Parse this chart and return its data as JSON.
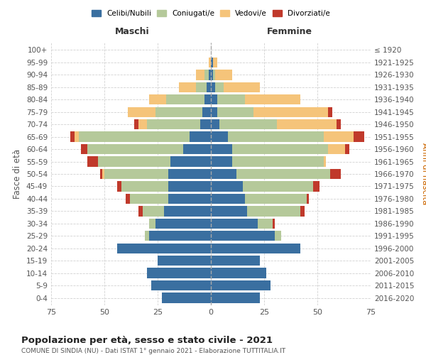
{
  "age_groups": [
    "0-4",
    "5-9",
    "10-14",
    "15-19",
    "20-24",
    "25-29",
    "30-34",
    "35-39",
    "40-44",
    "45-49",
    "50-54",
    "55-59",
    "60-64",
    "65-69",
    "70-74",
    "75-79",
    "80-84",
    "85-89",
    "90-94",
    "95-99",
    "100+"
  ],
  "birth_years": [
    "2016-2020",
    "2011-2015",
    "2006-2010",
    "2001-2005",
    "1996-2000",
    "1991-1995",
    "1986-1990",
    "1981-1985",
    "1976-1980",
    "1971-1975",
    "1966-1970",
    "1961-1965",
    "1956-1960",
    "1951-1955",
    "1946-1950",
    "1941-1945",
    "1936-1940",
    "1931-1935",
    "1926-1930",
    "1921-1925",
    "≤ 1920"
  ],
  "males": {
    "celibi": [
      23,
      28,
      30,
      25,
      44,
      29,
      26,
      22,
      20,
      20,
      20,
      19,
      13,
      10,
      5,
      4,
      3,
      2,
      1,
      0,
      0
    ],
    "coniugati": [
      0,
      0,
      0,
      0,
      0,
      2,
      3,
      10,
      18,
      22,
      30,
      34,
      45,
      52,
      25,
      22,
      18,
      5,
      2,
      0,
      0
    ],
    "vedovi": [
      0,
      0,
      0,
      0,
      0,
      0,
      0,
      0,
      0,
      0,
      1,
      0,
      0,
      2,
      4,
      13,
      8,
      8,
      4,
      1,
      0
    ],
    "divorziati": [
      0,
      0,
      0,
      0,
      0,
      0,
      0,
      2,
      2,
      2,
      1,
      5,
      3,
      2,
      2,
      0,
      0,
      0,
      0,
      0,
      0
    ]
  },
  "females": {
    "nubili": [
      23,
      28,
      26,
      23,
      42,
      30,
      22,
      17,
      16,
      15,
      12,
      10,
      10,
      8,
      4,
      3,
      3,
      2,
      1,
      1,
      0
    ],
    "coniugate": [
      0,
      0,
      0,
      0,
      0,
      3,
      7,
      25,
      29,
      33,
      44,
      43,
      45,
      45,
      27,
      17,
      13,
      4,
      1,
      0,
      0
    ],
    "vedove": [
      0,
      0,
      0,
      0,
      0,
      0,
      0,
      0,
      0,
      0,
      0,
      1,
      8,
      14,
      28,
      35,
      26,
      17,
      8,
      2,
      0
    ],
    "divorziate": [
      0,
      0,
      0,
      0,
      0,
      0,
      1,
      2,
      1,
      3,
      5,
      0,
      2,
      5,
      2,
      2,
      0,
      0,
      0,
      0,
      0
    ]
  },
  "colors": {
    "celibi": "#3a6fa0",
    "coniugati": "#b5c99a",
    "vedovi": "#f5c47a",
    "divorziati": "#c0392b"
  },
  "xlim": 75,
  "title": "Popolazione per età, sesso e stato civile - 2021",
  "subtitle": "COMUNE DI SINDIA (NU) - Dati ISTAT 1° gennaio 2021 - Elaborazione TUTTITALIA.IT",
  "ylabel_left": "Fasce di età",
  "ylabel_right": "Anni di nascita",
  "xlabel_left": "Maschi",
  "xlabel_right": "Femmine",
  "legend_labels": [
    "Celibi/Nubili",
    "Coniugati/e",
    "Vedovi/e",
    "Divorziati/e"
  ],
  "background_color": "#ffffff",
  "grid_color": "#cccccc"
}
